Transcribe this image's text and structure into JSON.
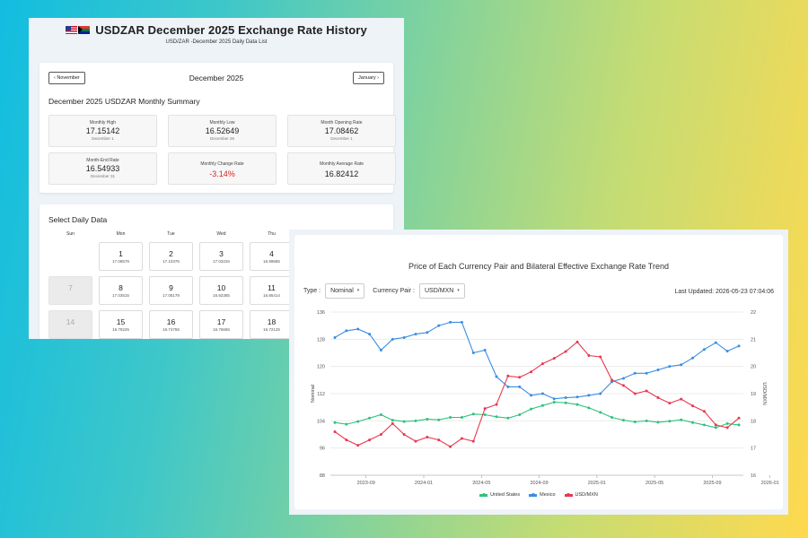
{
  "left": {
    "title": "USDZAR  December 2025 Exchange Rate History",
    "subtitle": "USD/ZAR -December 2025 Daily Data List",
    "nav": {
      "prev": "November",
      "next": "January",
      "month": "December 2025"
    },
    "summary_title": "December 2025 USDZAR Monthly Summary",
    "stats": [
      {
        "label": "Monthly High",
        "value": "17.15142",
        "date": "December 1"
      },
      {
        "label": "Monthly Low",
        "value": "16.52649",
        "date": "December 26"
      },
      {
        "label": "Month Opening Rate",
        "value": "17.08462",
        "date": "December 1"
      },
      {
        "label": "Month-End Rate",
        "value": "16.54933",
        "date": "December 31"
      },
      {
        "label": "Monthly Change Rate",
        "value": "-3.14%",
        "date": ""
      },
      {
        "label": "Monthly Average Rate",
        "value": "16.82412",
        "date": ""
      }
    ],
    "daily_title": "Select Daily Data",
    "weekdays": [
      "Sun",
      "Mon",
      "Tue",
      "Wed",
      "Thu"
    ],
    "days": [
      {
        "num": "",
        "rate": ""
      },
      {
        "num": "1",
        "rate": "17.08579"
      },
      {
        "num": "2",
        "rate": "17.10376"
      },
      {
        "num": "3",
        "rate": "17.03226"
      },
      {
        "num": "4",
        "rate": "16.99685"
      },
      {
        "num": "7",
        "rate": ""
      },
      {
        "num": "8",
        "rate": "17.03515"
      },
      {
        "num": "9",
        "rate": "17.05179"
      },
      {
        "num": "10",
        "rate": "16.92385"
      },
      {
        "num": "11",
        "rate": "16.85414"
      },
      {
        "num": "14",
        "rate": ""
      },
      {
        "num": "15",
        "rate": "16.79225"
      },
      {
        "num": "16",
        "rate": "16.74755"
      },
      {
        "num": "17",
        "rate": "16.76655"
      },
      {
        "num": "18",
        "rate": "16.72125"
      }
    ]
  },
  "right": {
    "title": "Price of Each Currency Pair and Bilateral Effective Exchange Rate Trend",
    "type_label": "Type :",
    "type_value": "Nominal",
    "pair_label": "Currency Pair :",
    "pair_value": "USD/MXN",
    "updated": "Last Updated: 2026-05-23 07:04:06"
  },
  "chart_data": {
    "type": "line",
    "x_ticks": [
      "2023-09",
      "2024-01",
      "2024-05",
      "2024-09",
      "2025-01",
      "2025-05",
      "2025-09",
      "2026-01"
    ],
    "ylabel": "Nominal",
    "y2label": "USD/MXN",
    "ylim": [
      88,
      136
    ],
    "y_ticks": [
      88,
      96,
      104,
      112,
      120,
      128,
      136
    ],
    "y2lim": [
      16,
      22
    ],
    "y2_ticks": [
      16,
      17,
      18,
      19,
      20,
      21,
      22
    ],
    "legend_position": "bottom",
    "series": [
      {
        "name": "United States",
        "color": "#2ec27e",
        "axis": "left",
        "values": [
          103.5,
          103.0,
          103.8,
          104.8,
          105.8,
          104.2,
          103.8,
          104.0,
          104.5,
          104.3,
          105.0,
          105.0,
          106.0,
          105.8,
          105.2,
          104.8,
          105.8,
          107.5,
          108.5,
          109.5,
          109.3,
          108.8,
          107.8,
          106.5,
          105.0,
          104.2,
          103.7,
          104.0,
          103.6,
          103.9,
          104.3,
          103.5,
          102.8,
          102.0,
          103.2,
          102.8
        ]
      },
      {
        "name": "Mexico",
        "color": "#3b8ee0",
        "axis": "left",
        "values": [
          128.5,
          130.5,
          131.0,
          129.5,
          124.8,
          128.0,
          128.5,
          129.5,
          130.0,
          132.0,
          133.0,
          133.0,
          124.0,
          124.8,
          117.0,
          114.0,
          114.0,
          111.5,
          112.0,
          110.5,
          110.8,
          111.0,
          111.5,
          112.0,
          115.5,
          116.5,
          118.0,
          118.0,
          119.0,
          120.0,
          120.5,
          122.5,
          125.0,
          127.0,
          124.5,
          126.0
        ]
      },
      {
        "name": "USD/MXN",
        "color": "#e8384f",
        "axis": "right",
        "values": [
          17.6,
          17.3,
          17.1,
          17.3,
          17.5,
          17.9,
          17.5,
          17.25,
          17.4,
          17.3,
          17.05,
          17.35,
          17.25,
          18.45,
          18.6,
          19.65,
          19.6,
          19.8,
          20.1,
          20.3,
          20.55,
          20.9,
          20.4,
          20.35,
          19.5,
          19.3,
          19.0,
          19.1,
          18.85,
          18.65,
          18.8,
          18.55,
          18.35,
          17.85,
          17.75,
          18.1
        ]
      }
    ]
  }
}
